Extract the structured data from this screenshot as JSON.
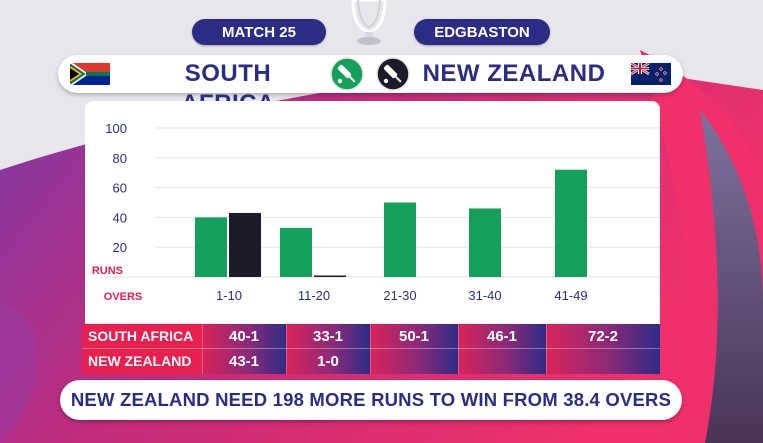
{
  "header": {
    "match_label": "MATCH 25",
    "venue_label": "EDGBASTON"
  },
  "teams": {
    "team1": "SOUTH AFRICA",
    "team2": "NEW ZEALAND"
  },
  "colors": {
    "south_africa": "#14a05a",
    "new_zealand": "#1e1a2a",
    "navy": "#2b2d85",
    "pink": "#e8204f"
  },
  "icons": [
    "south-africa-flag-icon",
    "new-zealand-flag-icon",
    "trophy-icon",
    "cricket-bat-icon"
  ],
  "chart_data": {
    "type": "bar",
    "categories": [
      "1-10",
      "11-20",
      "21-30",
      "31-40",
      "41-49"
    ],
    "series": [
      {
        "name": "SOUTH AFRICA",
        "values": [
          40,
          33,
          50,
          46,
          72
        ]
      },
      {
        "name": "NEW ZEALAND",
        "values": [
          43,
          1,
          null,
          null,
          null
        ]
      }
    ],
    "y_ticks": [
      20,
      40,
      60,
      80,
      100
    ],
    "ylim": [
      0,
      100
    ],
    "ylabel": "RUNS",
    "xlabel": "OVERS"
  },
  "table": {
    "rows": [
      {
        "team": "SOUTH AFRICA",
        "scores": [
          "40-1",
          "33-1",
          "50-1",
          "46-1",
          "72-2"
        ]
      },
      {
        "team": "NEW ZEALAND",
        "scores": [
          "43-1",
          "1-0",
          "",
          "",
          ""
        ]
      }
    ]
  },
  "status": "NEW ZEALAND NEED 198 MORE RUNS TO WIN FROM 38.4 OVERS"
}
